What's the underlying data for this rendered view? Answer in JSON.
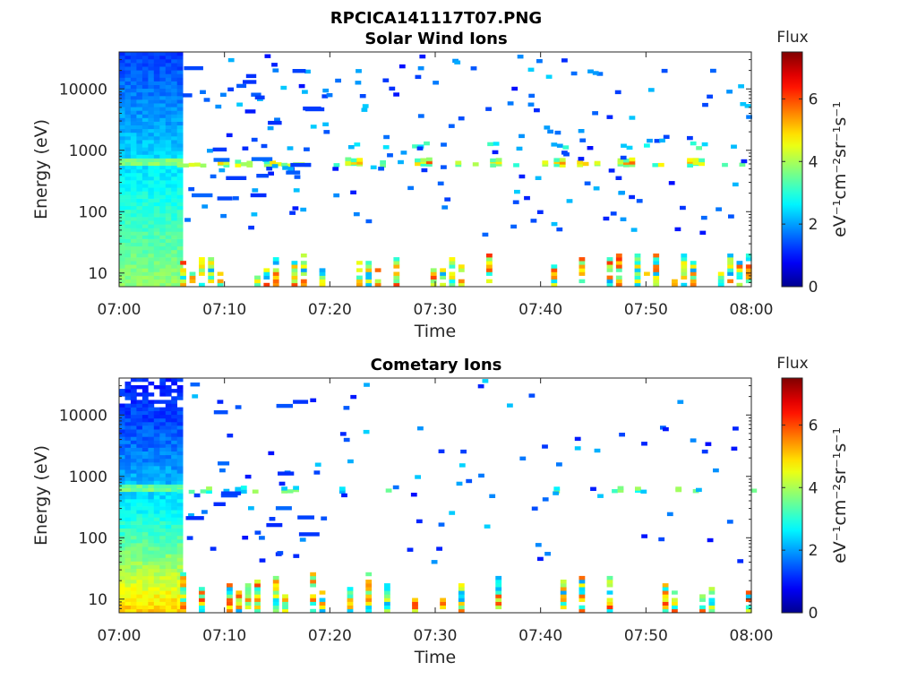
{
  "figure_title": "RPCICA141117T07.PNG",
  "colors": {
    "jet_stops": [
      "#00008f",
      "#0000ff",
      "#00ffff",
      "#ffff00",
      "#ff0000",
      "#800000"
    ],
    "background": "#ffffff",
    "axes": "#262626"
  },
  "chart_data": [
    {
      "type": "heatmap",
      "title": "Solar Wind Ions",
      "xlabel": "Time",
      "ylabel": "Energy (eV)",
      "y_scale": "log",
      "x_range": [
        "07:00",
        "08:00"
      ],
      "ylim": [
        6,
        40000
      ],
      "x_ticks": [
        "07:00",
        "07:10",
        "07:20",
        "07:30",
        "07:40",
        "07:50",
        "08:00"
      ],
      "y_ticks": [
        10,
        100,
        1000,
        10000
      ],
      "y_tick_labels": [
        "10",
        "100",
        "1000",
        "10000"
      ],
      "colorbar": {
        "title": "Flux",
        "label": "eV⁻¹cm⁻²sr⁻¹s⁻¹",
        "range": [
          0,
          7.5
        ],
        "ticks": [
          0,
          2,
          4,
          6
        ]
      },
      "grid": false,
      "features": [
        {
          "description": "dense broadband emission",
          "time_min": [
            0.0,
            5.5
          ],
          "energy_eV": [
            6,
            40000
          ],
          "flux": [
            1.0,
            3.5
          ]
        },
        {
          "description": "solar wind proton band",
          "time_min": [
            5.5,
            60
          ],
          "energy_eV": [
            550,
            700
          ],
          "flux": [
            3.0,
            5.0
          ],
          "peaks_min": [
            22,
            28.5,
            35,
            41.5,
            48,
            54.5
          ]
        },
        {
          "description": "alpha particle band",
          "time_min": [
            19,
            60
          ],
          "energy_eV": [
            1000,
            1300
          ],
          "flux": [
            2.0,
            3.5
          ]
        },
        {
          "description": "low-energy bursts",
          "time_min": [
            5.5,
            60
          ],
          "energy_eV": [
            6,
            25
          ],
          "flux": [
            2.0,
            6.0
          ]
        }
      ]
    },
    {
      "type": "heatmap",
      "title": "Cometary Ions",
      "xlabel": "Time",
      "ylabel": "Energy (eV)",
      "y_scale": "log",
      "x_range": [
        "07:00",
        "08:00"
      ],
      "ylim": [
        6,
        40000
      ],
      "x_ticks": [
        "07:00",
        "07:10",
        "07:20",
        "07:30",
        "07:40",
        "07:50",
        "08:00"
      ],
      "y_ticks": [
        10,
        100,
        1000,
        10000
      ],
      "y_tick_labels": [
        "10",
        "100",
        "1000",
        "10000"
      ],
      "colorbar": {
        "title": "Flux",
        "label": "eV⁻¹cm⁻²sr⁻¹s⁻¹",
        "range": [
          0,
          7.5
        ],
        "ticks": [
          0,
          2,
          4,
          6
        ]
      },
      "grid": false,
      "features": [
        {
          "description": "dense broadband emission",
          "time_min": [
            0.0,
            5.5
          ],
          "energy_eV": [
            6,
            40000
          ],
          "flux": [
            1.0,
            5.0
          ]
        },
        {
          "description": "solar wind proton band",
          "time_min": [
            5.5,
            60
          ],
          "energy_eV": [
            550,
            700
          ],
          "flux": [
            2.0,
            4.0
          ]
        },
        {
          "description": "low-energy bursts",
          "time_min": [
            5.5,
            60
          ],
          "energy_eV": [
            6,
            30
          ],
          "flux": [
            2.0,
            6.0
          ]
        }
      ]
    }
  ]
}
